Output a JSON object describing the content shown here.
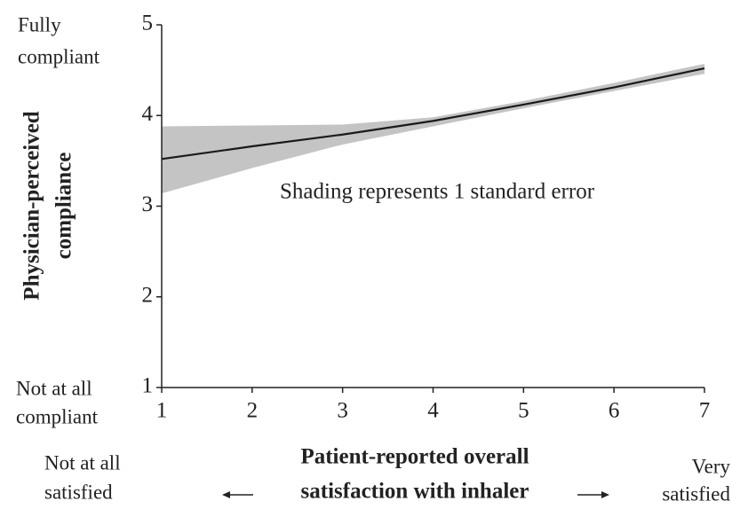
{
  "chart_data": {
    "type": "line",
    "x": [
      1,
      2,
      3,
      4,
      5,
      6,
      7
    ],
    "series": [
      {
        "color": "#1a1a1a",
        "values": [
          3.52,
          3.66,
          3.79,
          3.94,
          4.12,
          4.31,
          4.52
        ]
      }
    ],
    "band": {
      "color": "#c4c4c4",
      "lower": [
        3.14,
        3.42,
        3.68,
        3.88,
        4.08,
        4.27,
        4.46
      ],
      "upper": [
        3.88,
        3.89,
        3.9,
        3.98,
        4.16,
        4.36,
        4.57
      ]
    },
    "xlim": [
      1,
      7
    ],
    "ylim": [
      1,
      5
    ],
    "xticks": [
      1,
      2,
      3,
      4,
      5,
      6,
      7
    ],
    "yticks": [
      1,
      2,
      3,
      4,
      5
    ],
    "annotation": "Shading represents 1 standard error",
    "y_label": [
      "Physician-perceived",
      "compliance"
    ],
    "x_label": [
      "Patient-reported overall",
      "satisfaction with inhaler"
    ],
    "y_top_label": [
      "Fully",
      "compliant"
    ],
    "y_bottom_label": [
      "Not at all",
      "compliant"
    ],
    "x_left_label": [
      "Not at all",
      "satisfied"
    ],
    "x_right_label": [
      "Very",
      "satisfied"
    ]
  }
}
